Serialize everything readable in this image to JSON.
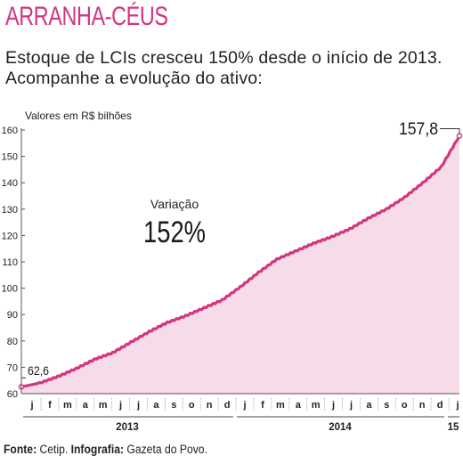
{
  "header": {
    "title": "ARRANHA-CÉUS",
    "subtitle": "Estoque de LCIs cresceu 150% desde o início de 2013. Acompanhe a evolução do ativo:"
  },
  "footer": {
    "source_label": "Fonte:",
    "source_value": " Cetip. ",
    "graphic_label": "Infografia:",
    "graphic_value": " Gazeta do Povo."
  },
  "chart_data": {
    "type": "area",
    "ylabel": "Valores em R$ bilhões",
    "ylim": [
      60,
      160
    ],
    "yticks": [
      60,
      70,
      80,
      90,
      100,
      110,
      120,
      130,
      140,
      150,
      160
    ],
    "grid": false,
    "color": "#d3357e",
    "fill": "#f6dbe8",
    "categories": [
      "j",
      "f",
      "m",
      "a",
      "m",
      "j",
      "j",
      "a",
      "s",
      "o",
      "n",
      "d",
      "j",
      "f",
      "m",
      "a",
      "m",
      "j",
      "j",
      "a",
      "s",
      "o",
      "n",
      "d",
      "j"
    ],
    "year_labels": [
      "2013",
      "2014",
      "15"
    ],
    "values": [
      62.6,
      64.0,
      66.5,
      69.5,
      73.0,
      75.5,
      79.5,
      83.5,
      87.0,
      89.5,
      92.5,
      95.5,
      100.5,
      106.0,
      111.0,
      114.0,
      117.0,
      119.5,
      122.5,
      126.5,
      130.0,
      134.5,
      140.0,
      146.0,
      157.8
    ],
    "annotations": {
      "start_value": "62,6",
      "end_value": "157,8",
      "variation_label": "Variação",
      "variation_value": "152%"
    }
  }
}
